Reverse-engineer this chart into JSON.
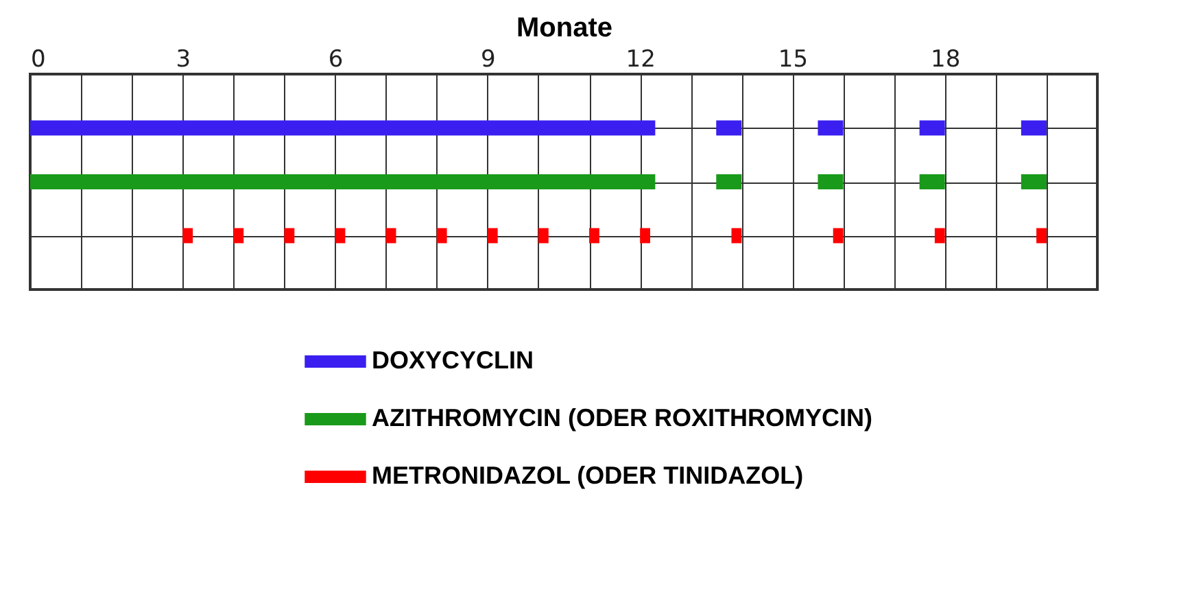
{
  "chart_data": {
    "type": "bar",
    "orientation": "horizontal",
    "xlabel": "Monate",
    "categories": [
      null,
      null,
      null
    ],
    "xlim": [
      0,
      21
    ],
    "xticks": [
      0,
      {
        "value": 1,
        "label": null
      },
      {
        "value": 2,
        "label": null
      },
      3,
      {
        "value": 4,
        "label": null
      },
      {
        "value": 5,
        "label": null
      },
      6,
      {
        "value": 7,
        "label": null
      },
      {
        "value": 8,
        "label": null
      },
      9,
      {
        "value": 10,
        "label": null
      },
      {
        "value": 11,
        "label": null
      },
      12,
      {
        "value": 13,
        "label": null
      },
      {
        "value": 14,
        "label": null
      },
      15,
      {
        "value": 16,
        "label": null
      },
      {
        "value": 17,
        "label": null
      },
      18,
      {
        "value": 19,
        "label": null
      },
      {
        "value": 20,
        "label": null
      },
      {
        "value": 21,
        "label": null
      }
    ],
    "grid": true,
    "legend": "bottom",
    "tick_labels": "x",
    "series": [
      {
        "name": "DOXYCYCLIN",
        "color": "#3a1ff0",
        "values": [
          12.3,
          null,
          null
        ],
        "base": [
          0,
          null,
          null
        ]
      },
      {
        "color": "#3a1ff0",
        "values": [
          0.5,
          null,
          null
        ],
        "base": [
          13.5,
          null,
          null
        ]
      },
      {
        "color": "#3a1ff0",
        "values": [
          0.5,
          null,
          null
        ],
        "base": [
          15.5,
          null,
          null
        ]
      },
      {
        "color": "#3a1ff0",
        "values": [
          0.5,
          null,
          null
        ],
        "base": [
          17.5,
          null,
          null
        ]
      },
      {
        "color": "#3a1ff0",
        "values": [
          0.5,
          null,
          null
        ],
        "base": [
          19.5,
          null,
          null
        ]
      },
      {
        "name": "AZITHROMYCIN (ODER ROXITHROMYCIN)",
        "color": "#1a9a1a",
        "values": [
          null,
          12.3,
          null
        ],
        "base": [
          null,
          0,
          null
        ]
      },
      {
        "color": "#1a9a1a",
        "values": [
          null,
          0.5,
          null
        ],
        "base": [
          null,
          13.5,
          null
        ]
      },
      {
        "color": "#1a9a1a",
        "values": [
          null,
          0.5,
          null
        ],
        "base": [
          null,
          15.5,
          null
        ]
      },
      {
        "color": "#1a9a1a",
        "values": [
          null,
          0.5,
          null
        ],
        "base": [
          null,
          17.5,
          null
        ]
      },
      {
        "color": "#1a9a1a",
        "values": [
          null,
          0.5,
          null
        ],
        "base": [
          null,
          19.5,
          null
        ]
      },
      {
        "name": "METRONIDAZOL (ODER TINIDAZOL)",
        "color": "#ff0000",
        "values": [
          null,
          null,
          0.2
        ],
        "base": [
          null,
          null,
          3
        ]
      },
      {
        "color": "#ff0000",
        "values": [
          null,
          null,
          0.2
        ],
        "base": [
          null,
          null,
          4
        ]
      },
      {
        "color": "#ff0000",
        "values": [
          null,
          null,
          0.2
        ],
        "base": [
          null,
          null,
          5
        ]
      },
      {
        "color": "#ff0000",
        "values": [
          null,
          null,
          0.2
        ],
        "base": [
          null,
          null,
          6
        ]
      },
      {
        "color": "#ff0000",
        "values": [
          null,
          null,
          0.2
        ],
        "base": [
          null,
          null,
          7
        ]
      },
      {
        "color": "#ff0000",
        "values": [
          null,
          null,
          0.2
        ],
        "base": [
          null,
          null,
          8
        ]
      },
      {
        "color": "#ff0000",
        "values": [
          null,
          null,
          0.2
        ],
        "base": [
          null,
          null,
          9
        ]
      },
      {
        "color": "#ff0000",
        "values": [
          null,
          null,
          0.2
        ],
        "base": [
          null,
          null,
          10
        ]
      },
      {
        "color": "#ff0000",
        "values": [
          null,
          null,
          0.2
        ],
        "base": [
          null,
          null,
          11
        ]
      },
      {
        "color": "#ff0000",
        "values": [
          null,
          null,
          0.2
        ],
        "base": [
          null,
          null,
          12
        ]
      },
      {
        "color": "#ff0000",
        "values": [
          null,
          null,
          0.2
        ],
        "base": [
          null,
          null,
          13.8
        ]
      },
      {
        "color": "#ff0000",
        "values": [
          null,
          null,
          0.2
        ],
        "base": [
          null,
          null,
          15.8
        ]
      },
      {
        "color": "#ff0000",
        "values": [
          null,
          null,
          0.2
        ],
        "base": [
          null,
          null,
          17.8
        ]
      },
      {
        "color": "#ff0000",
        "values": [
          null,
          null,
          0.2
        ],
        "base": [
          null,
          null,
          19.8
        ]
      }
    ]
  }
}
